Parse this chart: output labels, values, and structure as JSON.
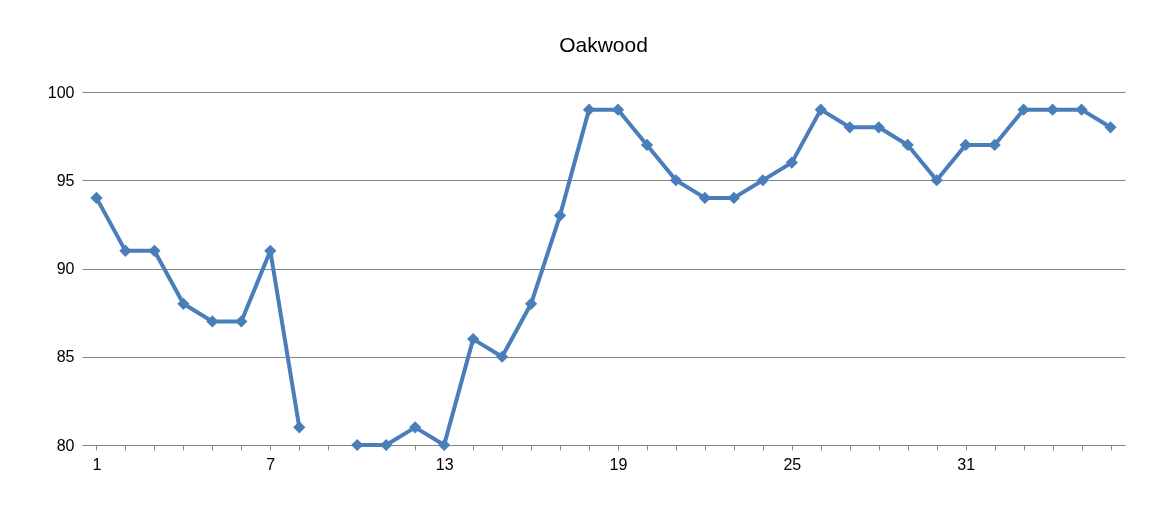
{
  "chart_data": {
    "type": "line",
    "title": "Oakwood",
    "categories": [
      "1",
      null,
      null,
      null,
      null,
      null,
      "7",
      null,
      null,
      null,
      null,
      null,
      "13",
      null,
      null,
      null,
      null,
      null,
      "19",
      null,
      null,
      null,
      null,
      null,
      "25",
      null,
      null,
      null,
      null,
      null,
      "31",
      null,
      null,
      null,
      null,
      null
    ],
    "series": [
      {
        "color": "#4a7ebb",
        "values": [
          94,
          91,
          91,
          88,
          87,
          87,
          91,
          81,
          null,
          80,
          80,
          81,
          80,
          86,
          85,
          88,
          93,
          99,
          99,
          97,
          95,
          94,
          94,
          95,
          96,
          99,
          98,
          98,
          97,
          95,
          97,
          97,
          99,
          99,
          99,
          98
        ]
      }
    ],
    "ylim": [
      80,
      100
    ],
    "yticks": [
      80,
      85,
      90,
      95,
      100
    ],
    "grid": "y",
    "marker": "diamond",
    "line_style": "solid"
  }
}
